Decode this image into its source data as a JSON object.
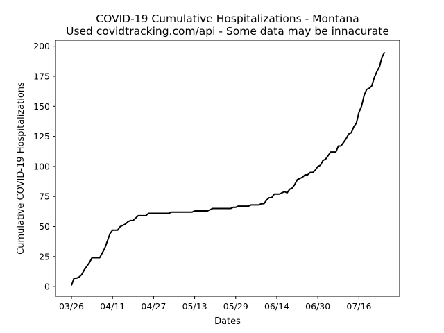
{
  "chart_data": {
    "type": "line",
    "title": "COVID-19 Cumulative Hospitalizations - Montana",
    "subtitle": "Used covidtracking.com/api - Some data may be innacurate",
    "xlabel": "Dates",
    "ylabel": "Cumulative COVID-19 Hospitalizations",
    "x_tick_labels": [
      "03/26",
      "04/11",
      "04/27",
      "05/13",
      "05/29",
      "06/14",
      "06/30",
      "07/16"
    ],
    "y_ticks": [
      0,
      25,
      50,
      75,
      100,
      125,
      150,
      175,
      200
    ],
    "ylim": [
      -8,
      205
    ],
    "grid": false,
    "line_color": "#000000",
    "series": [
      {
        "x": [
          "03/26",
          "03/27",
          "03/28",
          "03/29",
          "03/30",
          "03/31",
          "04/01",
          "04/02",
          "04/03",
          "04/04",
          "04/05",
          "04/06",
          "04/07",
          "04/08",
          "04/09",
          "04/10",
          "04/11",
          "04/12",
          "04/13",
          "04/14",
          "04/15",
          "04/16",
          "04/17",
          "04/18",
          "04/19",
          "04/20",
          "04/21",
          "04/22",
          "04/23",
          "04/24",
          "04/25",
          "04/26",
          "04/27",
          "04/28",
          "04/29",
          "04/30",
          "05/01",
          "05/02",
          "05/03",
          "05/04",
          "05/05",
          "05/06",
          "05/07",
          "05/08",
          "05/09",
          "05/10",
          "05/11",
          "05/12",
          "05/13",
          "05/14",
          "05/15",
          "05/16",
          "05/17",
          "05/18",
          "05/19",
          "05/20",
          "05/21",
          "05/22",
          "05/23",
          "05/24",
          "05/25",
          "05/26",
          "05/27",
          "05/28",
          "05/29",
          "05/30",
          "05/31",
          "06/01",
          "06/02",
          "06/03",
          "06/04",
          "06/05",
          "06/06",
          "06/07",
          "06/08",
          "06/09",
          "06/10",
          "06/11",
          "06/12",
          "06/13",
          "06/14",
          "06/15",
          "06/16",
          "06/17",
          "06/18",
          "06/19",
          "06/20",
          "06/21",
          "06/22",
          "06/23",
          "06/24",
          "06/25",
          "06/26",
          "06/27",
          "06/28",
          "06/29",
          "06/30",
          "07/01",
          "07/02",
          "07/03",
          "07/04",
          "07/05",
          "07/06",
          "07/07",
          "07/08",
          "07/09",
          "07/10",
          "07/11",
          "07/12",
          "07/13",
          "07/14",
          "07/15",
          "07/16",
          "07/17",
          "07/18",
          "07/19",
          "07/20",
          "07/21",
          "07/22",
          "07/23",
          "07/24",
          "07/25",
          "07/26"
        ],
        "values": [
          1,
          7,
          7,
          8,
          10,
          14,
          17,
          20,
          24,
          24,
          24,
          24,
          28,
          32,
          38,
          44,
          47,
          47,
          47,
          50,
          51,
          52,
          54,
          55,
          55,
          57,
          59,
          59,
          59,
          59,
          61,
          61,
          61,
          61,
          61,
          61,
          61,
          61,
          61,
          62,
          62,
          62,
          62,
          62,
          62,
          62,
          62,
          62,
          63,
          63,
          63,
          63,
          63,
          63,
          64,
          65,
          65,
          65,
          65,
          65,
          65,
          65,
          65,
          66,
          66,
          67,
          67,
          67,
          67,
          67,
          68,
          68,
          68,
          68,
          69,
          69,
          72,
          74,
          74,
          77,
          77,
          77,
          78,
          79,
          78,
          81,
          82,
          85,
          89,
          90,
          91,
          93,
          93,
          95,
          95,
          97,
          100,
          101,
          105,
          106,
          109,
          112,
          112,
          112,
          117,
          117,
          120,
          123,
          127,
          128,
          133,
          136,
          145,
          150,
          159,
          164,
          165,
          167,
          174,
          179,
          183,
          191,
          195
        ]
      }
    ]
  }
}
